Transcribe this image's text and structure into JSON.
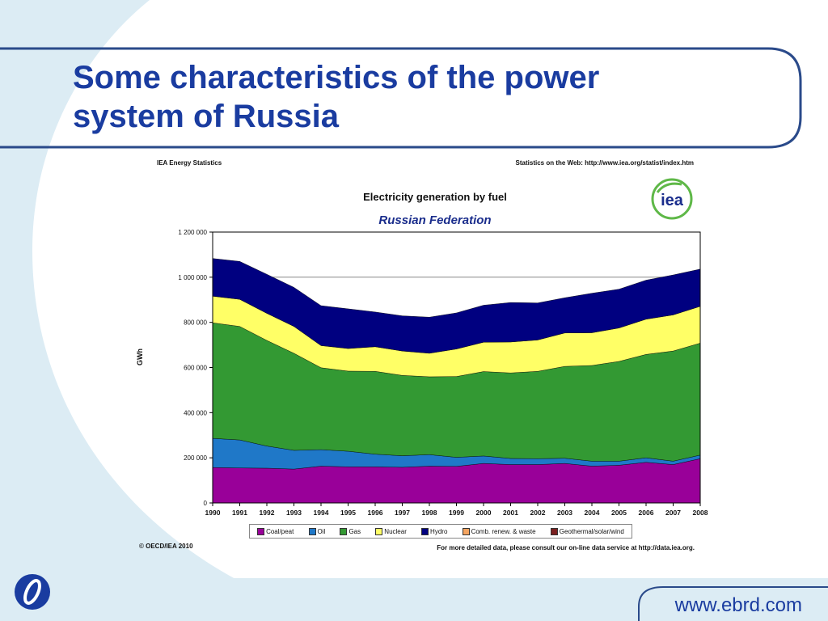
{
  "slide": {
    "title_line1": "Some characteristics of the power",
    "title_line2": "system of Russia",
    "website": "www.ebrd.com",
    "colors": {
      "title": "#1a3ca0",
      "frame": "#2a4a8a",
      "background_swirl": "#dcecf4"
    },
    "logo_icon": "ebrd-logo-icon"
  },
  "iea_header": {
    "left": "IEA Energy Statistics",
    "right": "Statistics on the Web: http://www.iea.org/statist/index.htm",
    "logo_text": "iea",
    "copyright": "© OECD/IEA 2010",
    "footnote": "For more detailed data, please consult our on-line data service at http://data.iea.org."
  },
  "chart_data": {
    "type": "area",
    "stacked": true,
    "title": "Electricity generation by fuel",
    "subtitle": "Russian Federation",
    "ylabel": "GWh",
    "xlabel": "",
    "ylim": [
      0,
      1200000
    ],
    "yticks": [
      0,
      200000,
      400000,
      600000,
      800000,
      1000000,
      1200000
    ],
    "ytick_labels": [
      "0",
      "200 000",
      "400 000",
      "600 000",
      "800 000",
      "1 000 000",
      "1 200 000"
    ],
    "grid": true,
    "legend_position": "bottom",
    "x": [
      "1990",
      "1991",
      "1992",
      "1993",
      "1994",
      "1995",
      "1996",
      "1997",
      "1998",
      "1999",
      "2000",
      "2001",
      "2002",
      "2003",
      "2004",
      "2005",
      "2006",
      "2007",
      "2008"
    ],
    "series": [
      {
        "name": "Coal/peat",
        "color": "#990099",
        "values": [
          157000,
          155000,
          154000,
          150000,
          163000,
          160000,
          160000,
          158000,
          163000,
          162000,
          175000,
          170000,
          170000,
          175000,
          163000,
          167000,
          180000,
          170000,
          196000
        ]
      },
      {
        "name": "Oil",
        "color": "#1f78c8",
        "values": [
          129000,
          124000,
          98000,
          83000,
          73000,
          69000,
          56000,
          51000,
          51000,
          40000,
          33000,
          27000,
          26000,
          23000,
          22000,
          18000,
          20000,
          15000,
          16000
        ]
      },
      {
        "name": "Gas",
        "color": "#339933",
        "values": [
          512000,
          503000,
          468000,
          430000,
          363000,
          355000,
          367000,
          356000,
          345000,
          358000,
          374000,
          379000,
          387000,
          407000,
          424000,
          442000,
          458000,
          488000,
          496000
        ]
      },
      {
        "name": "Nuclear",
        "color": "#ffff66",
        "values": [
          118000,
          120000,
          120000,
          119000,
          98000,
          100000,
          109000,
          108000,
          104000,
          122000,
          130000,
          137000,
          139000,
          148000,
          145000,
          148000,
          156000,
          160000,
          163000
        ]
      },
      {
        "name": "Hydro",
        "color": "#000080",
        "values": [
          167000,
          168000,
          173000,
          173000,
          177000,
          176000,
          154000,
          156000,
          160000,
          160000,
          164000,
          175000,
          164000,
          156000,
          175000,
          172000,
          173000,
          177000,
          165000
        ]
      },
      {
        "name": "Comb. renew. & waste",
        "color": "#f4a460",
        "values": [
          0,
          0,
          0,
          0,
          0,
          0,
          0,
          0,
          0,
          0,
          0,
          0,
          0,
          0,
          0,
          0,
          0,
          0,
          0
        ]
      },
      {
        "name": "Geothermal/solar/wind",
        "color": "#7a1f1f",
        "values": [
          0,
          0,
          0,
          0,
          0,
          0,
          0,
          0,
          0,
          0,
          0,
          0,
          0,
          0,
          0,
          0,
          0,
          0,
          0
        ]
      }
    ]
  }
}
